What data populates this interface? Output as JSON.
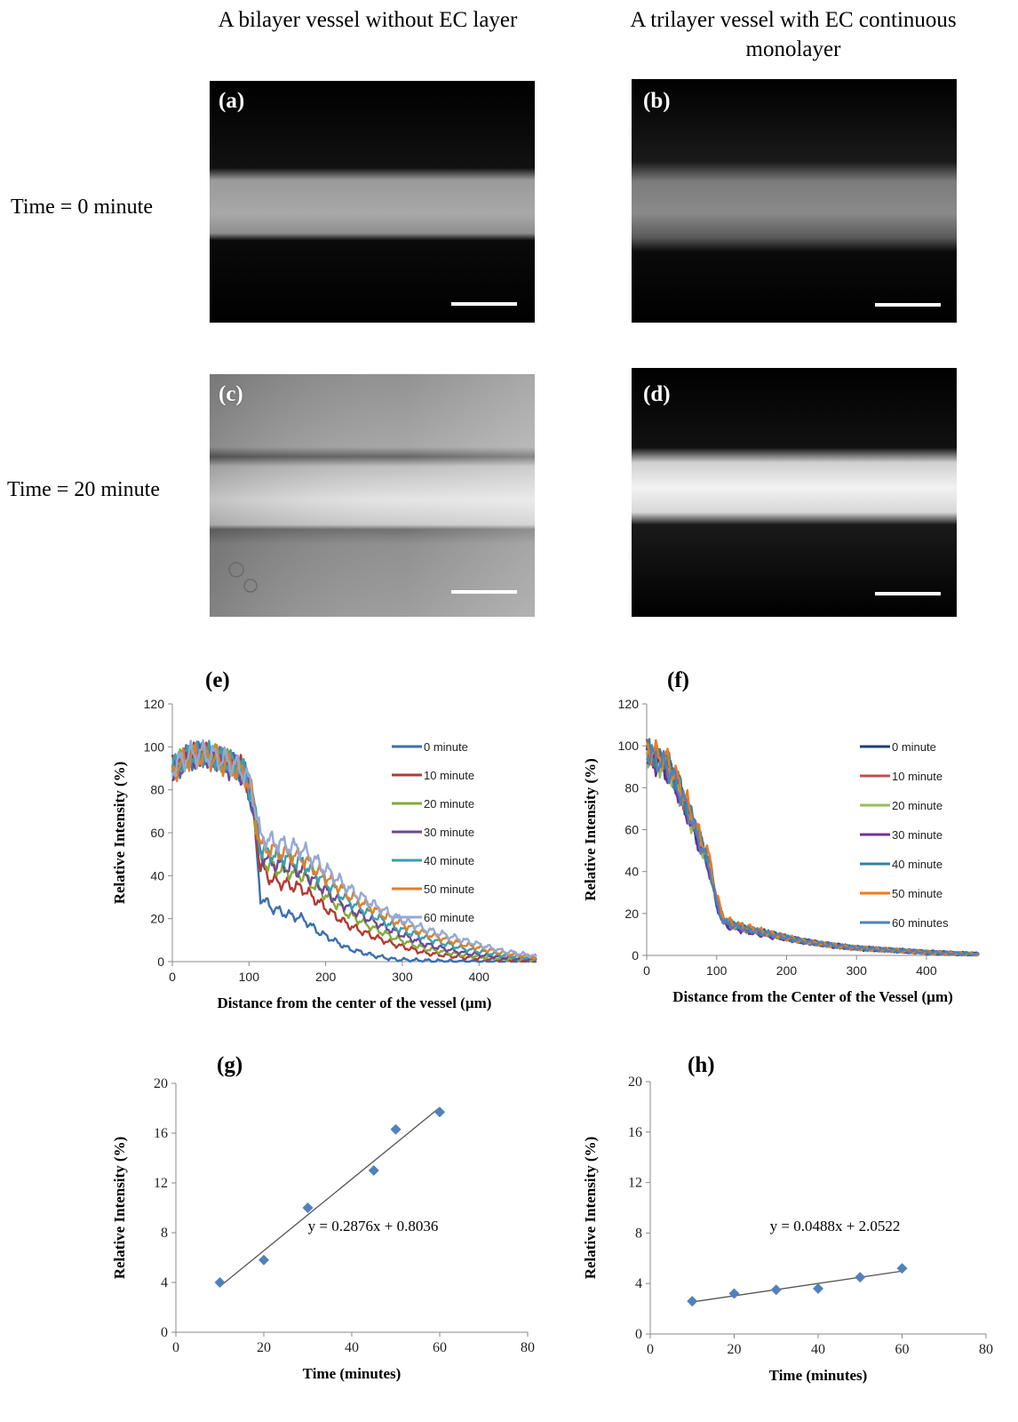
{
  "headers": {
    "left": "A bilayer vessel without EC layer",
    "right": "A trilayer vessel with EC continuous monolayer"
  },
  "rows": {
    "t0": "Time = 0 minute",
    "t20": "Time = 20 minute"
  },
  "panels": {
    "a": "(a)",
    "b": "(b)",
    "c": "(c)",
    "d": "(d)",
    "e": "(e)",
    "f": "(f)",
    "g": "(g)",
    "h": "(h)"
  },
  "chart_data": [
    {
      "id": "e",
      "type": "line",
      "xlabel": "Distance  from  the center of the vessel (µm)",
      "ylabel": "Relative Intensity (%)",
      "xlim": [
        0,
        475
      ],
      "ylim": [
        0,
        120
      ],
      "xticks": [
        0,
        100,
        200,
        300,
        400
      ],
      "yticks": [
        0,
        20,
        40,
        60,
        80,
        100,
        120
      ],
      "legend_position": "right",
      "series": [
        {
          "name": "0 minute",
          "color": "#3a6fb0",
          "x": [
            0,
            20,
            40,
            60,
            80,
            95,
            105,
            115,
            130,
            150,
            170,
            190,
            210,
            230,
            260,
            290,
            330,
            380,
            430,
            475
          ],
          "y": [
            88,
            95,
            97,
            95,
            92,
            88,
            70,
            30,
            25,
            22,
            20,
            14,
            10,
            6,
            3,
            1,
            0.5,
            0,
            0,
            0
          ]
        },
        {
          "name": "10 minute",
          "color": "#b03a34",
          "x": [
            0,
            20,
            40,
            60,
            80,
            95,
            105,
            115,
            130,
            150,
            170,
            190,
            210,
            230,
            260,
            290,
            330,
            380,
            430,
            475
          ],
          "y": [
            90,
            96,
            97,
            95,
            92,
            88,
            72,
            44,
            38,
            36,
            34,
            28,
            22,
            17,
            12,
            8,
            4,
            2,
            1,
            0.5
          ]
        },
        {
          "name": "20 minute",
          "color": "#84ab3c",
          "x": [
            0,
            20,
            40,
            60,
            80,
            95,
            105,
            115,
            130,
            150,
            170,
            190,
            210,
            230,
            260,
            290,
            330,
            380,
            430,
            475
          ],
          "y": [
            90,
            96,
            97,
            95,
            92,
            88,
            74,
            48,
            44,
            42,
            40,
            34,
            28,
            22,
            16,
            11,
            6,
            3,
            1.5,
            1
          ]
        },
        {
          "name": "30 minute",
          "color": "#6b4a95",
          "x": [
            0,
            20,
            40,
            60,
            80,
            95,
            105,
            115,
            130,
            150,
            170,
            190,
            210,
            230,
            260,
            290,
            330,
            380,
            430,
            475
          ],
          "y": [
            88,
            95,
            96,
            94,
            90,
            86,
            74,
            50,
            46,
            44,
            42,
            36,
            30,
            25,
            19,
            14,
            8,
            4,
            2,
            1
          ]
        },
        {
          "name": "40 minute",
          "color": "#3a9fb0",
          "x": [
            0,
            20,
            40,
            60,
            80,
            95,
            105,
            115,
            130,
            150,
            170,
            190,
            210,
            230,
            260,
            290,
            330,
            380,
            430,
            475
          ],
          "y": [
            90,
            96,
            97,
            95,
            92,
            88,
            76,
            52,
            50,
            48,
            46,
            40,
            34,
            28,
            22,
            16,
            11,
            6,
            3,
            1.5
          ]
        },
        {
          "name": "50 minute",
          "color": "#e07f2c",
          "x": [
            0,
            20,
            40,
            60,
            80,
            95,
            105,
            115,
            130,
            150,
            170,
            190,
            210,
            230,
            260,
            290,
            330,
            380,
            430,
            475
          ],
          "y": [
            88,
            95,
            96,
            94,
            90,
            87,
            76,
            54,
            52,
            50,
            48,
            42,
            37,
            31,
            25,
            19,
            13,
            8,
            4,
            2
          ]
        },
        {
          "name": "60 minute",
          "color": "#93a9d6",
          "x": [
            0,
            20,
            40,
            60,
            80,
            95,
            105,
            115,
            130,
            150,
            170,
            190,
            210,
            230,
            260,
            290,
            330,
            380,
            430,
            475
          ],
          "y": [
            90,
            96,
            97,
            95,
            92,
            88,
            78,
            58,
            56,
            54,
            52,
            46,
            40,
            34,
            27,
            21,
            15,
            10,
            5,
            2.5
          ]
        }
      ]
    },
    {
      "id": "f",
      "type": "line",
      "xlabel": "Distance from the Center of the Vessel (µm)",
      "ylabel": "Relative Intensity (%)",
      "xlim": [
        0,
        475
      ],
      "ylim": [
        0,
        120
      ],
      "xticks": [
        0,
        100,
        200,
        300,
        400
      ],
      "yticks": [
        0,
        20,
        40,
        60,
        80,
        100,
        120
      ],
      "legend_position": "right",
      "series": [
        {
          "name": "0 minute",
          "color": "#1f3f73",
          "x": [
            0,
            15,
            30,
            45,
            60,
            75,
            90,
            100,
            110,
            125,
            150,
            180,
            220,
            260,
            300,
            350,
            400,
            450,
            475
          ],
          "y": [
            98,
            93,
            90,
            80,
            68,
            55,
            42,
            25,
            16,
            14,
            12,
            10,
            7,
            5,
            3.5,
            2.5,
            1.5,
            0.8,
            0.5
          ]
        },
        {
          "name": "10 minute",
          "color": "#c0504d",
          "x": [
            0,
            15,
            30,
            45,
            60,
            75,
            90,
            100,
            110,
            125,
            150,
            180,
            220,
            260,
            300,
            350,
            400,
            450,
            475
          ],
          "y": [
            97,
            94,
            91,
            81,
            69,
            56,
            43,
            26,
            17,
            14,
            12,
            10,
            7,
            5,
            3.5,
            2.5,
            1.5,
            0.8,
            0.5
          ]
        },
        {
          "name": "20 minute",
          "color": "#9bbb59",
          "x": [
            0,
            15,
            30,
            45,
            60,
            75,
            90,
            100,
            110,
            125,
            150,
            180,
            220,
            260,
            300,
            350,
            400,
            450,
            475
          ],
          "y": [
            96,
            92,
            89,
            79,
            67,
            54,
            41,
            25,
            16,
            14,
            12,
            10,
            7,
            5,
            3.5,
            2.5,
            1.5,
            0.8,
            0.5
          ]
        },
        {
          "name": "30 minute",
          "color": "#7030a0",
          "x": [
            0,
            15,
            30,
            45,
            60,
            75,
            90,
            100,
            110,
            125,
            150,
            180,
            220,
            260,
            300,
            350,
            400,
            450,
            475
          ],
          "y": [
            96,
            91,
            88,
            78,
            66,
            53,
            40,
            24,
            15,
            13,
            11,
            9,
            7,
            5,
            3.5,
            2.5,
            1.5,
            0.8,
            0.5
          ]
        },
        {
          "name": "40 minute",
          "color": "#31849b",
          "x": [
            0,
            15,
            30,
            45,
            60,
            75,
            90,
            100,
            110,
            125,
            150,
            180,
            220,
            260,
            300,
            350,
            400,
            450,
            475
          ],
          "y": [
            98,
            95,
            92,
            82,
            70,
            57,
            44,
            27,
            17,
            15,
            12,
            10,
            7,
            5,
            3.5,
            2.5,
            1.5,
            0.8,
            0.5
          ]
        },
        {
          "name": "50 minute",
          "color": "#f07a1a",
          "x": [
            0,
            15,
            30,
            45,
            60,
            75,
            90,
            100,
            110,
            125,
            150,
            180,
            220,
            260,
            300,
            350,
            400,
            450,
            475
          ],
          "y": [
            99,
            96,
            93,
            83,
            71,
            58,
            46,
            28,
            18,
            15,
            13,
            10,
            7,
            5,
            3.5,
            2.5,
            1.5,
            0.8,
            0.5
          ]
        },
        {
          "name": "60 minutes",
          "color": "#4f81bd",
          "x": [
            0,
            15,
            30,
            45,
            60,
            75,
            90,
            100,
            110,
            125,
            150,
            180,
            220,
            260,
            300,
            350,
            400,
            450,
            475
          ],
          "y": [
            97,
            93,
            90,
            80,
            68,
            55,
            42,
            25,
            16,
            14,
            12,
            10,
            7,
            5,
            3.5,
            2.5,
            1.5,
            0.8,
            0.5
          ]
        }
      ]
    },
    {
      "id": "g",
      "type": "scatter",
      "xlabel": "Time (minutes)",
      "ylabel": "Relative Intensity (%)",
      "xlim": [
        0,
        80
      ],
      "ylim": [
        0,
        20
      ],
      "xticks": [
        0,
        20,
        40,
        60,
        80
      ],
      "yticks": [
        0,
        4,
        8,
        12,
        16,
        20
      ],
      "marker_color": "#4f81bd",
      "points": {
        "x": [
          10,
          20,
          30,
          45,
          50,
          60
        ],
        "y": [
          4.0,
          5.8,
          10.0,
          13.0,
          16.3,
          17.7
        ]
      },
      "trendline": {
        "slope": 0.2876,
        "intercept": 0.8036,
        "x_range": [
          10,
          60
        ],
        "equation": "y = 0.2876x + 0.8036"
      }
    },
    {
      "id": "h",
      "type": "scatter",
      "xlabel": "Time (minutes)",
      "ylabel": "Relative Intensity (%)",
      "xlim": [
        0,
        80
      ],
      "ylim": [
        0,
        20
      ],
      "xticks": [
        0,
        20,
        40,
        60,
        80
      ],
      "yticks": [
        0,
        4,
        8,
        12,
        16,
        20
      ],
      "marker_color": "#4f81bd",
      "points": {
        "x": [
          10,
          20,
          30,
          40,
          50,
          60
        ],
        "y": [
          2.6,
          3.2,
          3.5,
          3.6,
          4.5,
          5.2
        ]
      },
      "trendline": {
        "slope": 0.0488,
        "intercept": 2.0522,
        "x_range": [
          10,
          60
        ],
        "equation": "y = 0.0488x + 2.0522"
      }
    }
  ]
}
